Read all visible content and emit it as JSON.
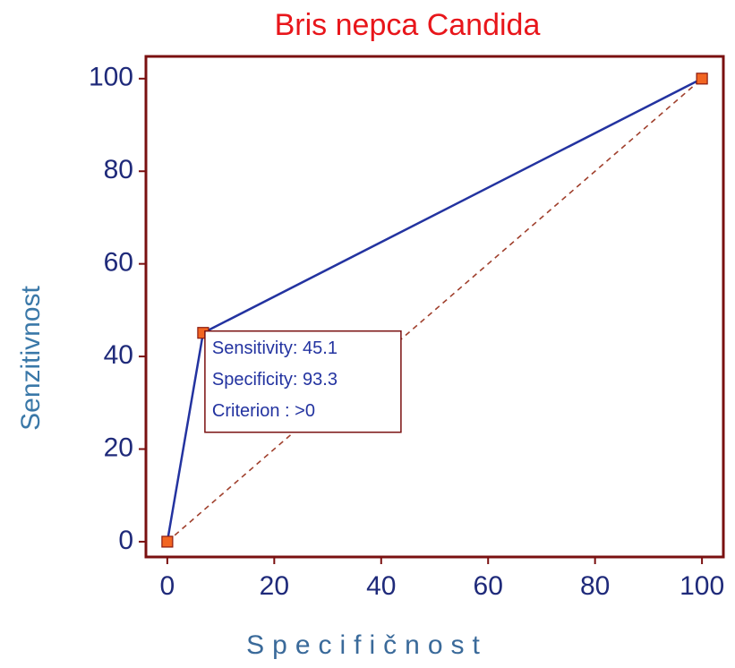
{
  "chart_data": {
    "type": "line",
    "title": "Bris nepca Candida",
    "xlabel": "Specifičnost",
    "ylabel": "Senzitivnost",
    "x": [
      0,
      6.7,
      100
    ],
    "series": [
      {
        "values": [
          0,
          45.1,
          100
        ],
        "color": "#2333a0",
        "marker_color": "#f26522"
      }
    ],
    "reference_line": {
      "x": [
        0,
        100
      ],
      "values": [
        0,
        100
      ],
      "color": "#a0402d",
      "style": "dashed"
    },
    "annotation": {
      "lines": [
        "Sensitivity: 45.1",
        "Specificity: 93.3",
        "Criterion : >0"
      ]
    },
    "xlim": [
      -4,
      104
    ],
    "ylim": [
      -3.3,
      104.8
    ],
    "xticks": [
      0,
      20,
      40,
      60,
      80,
      100
    ],
    "yticks": [
      0,
      20,
      40,
      60,
      80,
      100
    ],
    "grid": false
  }
}
